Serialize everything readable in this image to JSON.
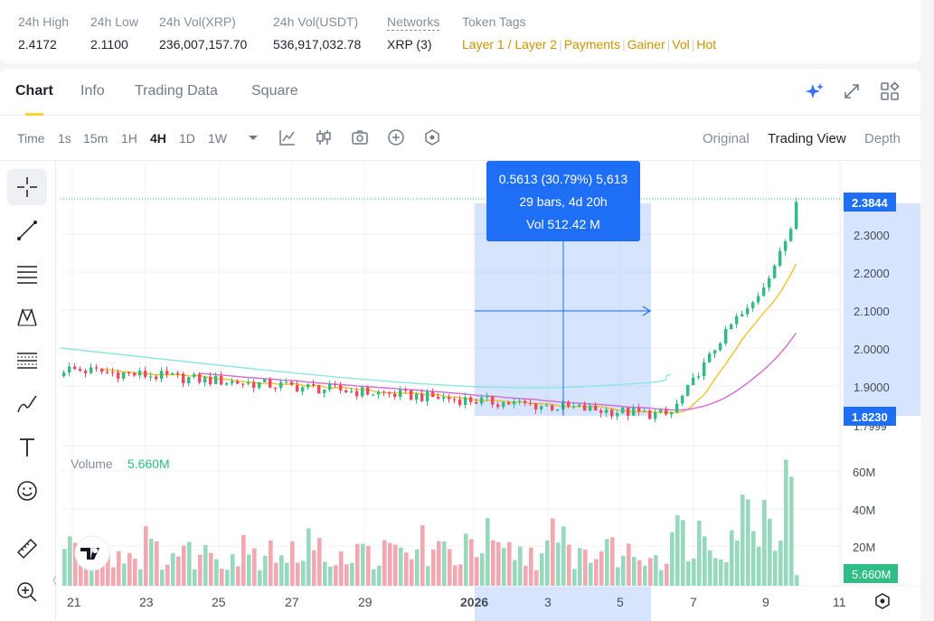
{
  "stats": {
    "high_label": "24h High",
    "high_value": "2.4172",
    "low_label": "24h Low",
    "low_value": "2.1100",
    "volxrp_label": "24h Vol(XRP)",
    "volxrp_value": "236,007,157.70",
    "volusdt_label": "24h Vol(USDT)",
    "volusdt_value": "536,917,032.78",
    "networks_label": "Networks",
    "networks_value": "XRP (3)",
    "tags_label": "Token Tags",
    "tags": [
      "Layer 1 / Layer 2",
      "Payments",
      "Gainer",
      "Vol",
      "Hot"
    ]
  },
  "tabs": [
    "Chart",
    "Info",
    "Trading Data",
    "Square"
  ],
  "timeframes": {
    "time": "Time",
    "s1": "1s",
    "m15": "15m",
    "h1": "1H",
    "h4": "4H",
    "d1": "1D",
    "w1": "1W"
  },
  "views": {
    "original": "Original",
    "tradingview": "Trading View",
    "depth": "Depth"
  },
  "tooltip": {
    "line1": "0.5613 (30.79%) 5,613",
    "line2": "29 bars, 4d 20h",
    "line3": "Vol 512.42 M"
  },
  "price_axis": {
    "ticks": [
      "2.3000",
      "2.2000",
      "2.1000",
      "2.0000",
      "1.9000"
    ],
    "last_price": "2.3844",
    "range_low": "1.8230",
    "cut_label": "1.7999"
  },
  "volume": {
    "label": "Volume",
    "value": "5.660M",
    "ticks": [
      "60M",
      "40M",
      "20M"
    ],
    "last": "5.660M"
  },
  "time_axis": [
    "21",
    "23",
    "25",
    "27",
    "29",
    "2026",
    "3",
    "5",
    "7",
    "9",
    "11"
  ],
  "colors": {
    "up": "#2ebd85",
    "down": "#f6465d",
    "accent": "#fcd535",
    "range": "#1e6ff5"
  },
  "chart_data": {
    "type": "candlestick",
    "interval": "4H",
    "last_price": 2.3844,
    "volume_last": "5.660M",
    "measure": {
      "change": 0.5613,
      "change_pct": 30.79,
      "bars": 29,
      "duration": "4d 20h",
      "volume": "512.42 M",
      "from": 1.823,
      "to": 2.3844
    }
  }
}
